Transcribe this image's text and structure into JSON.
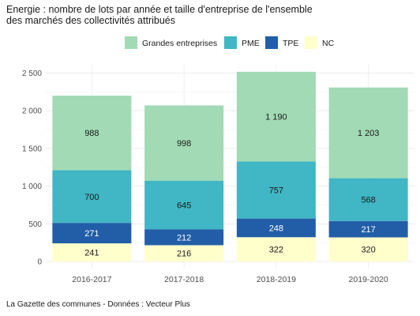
{
  "title_lines": [
    "Energie : nombre de lots par année et taille d'entreprise de l'ensemble",
    "des marchés des collectivités attribués"
  ],
  "caption": "La Gazette des communes - Données : Vecteur Plus",
  "colors": {
    "Grandes entreprises": "#a1dab4",
    "PME": "#41b6c4",
    "TPE": "#225ea8",
    "NC": "#ffffcc"
  },
  "chart_data": {
    "type": "bar",
    "stacked": true,
    "categories": [
      "2016-2017",
      "2017-2018",
      "2018-2019",
      "2019-2020"
    ],
    "series": [
      {
        "name": "Grandes entreprises",
        "values": [
          988,
          998,
          1190,
          1203
        ],
        "labels": [
          "988",
          "998",
          "1 190",
          "1 203"
        ]
      },
      {
        "name": "PME",
        "values": [
          700,
          645,
          757,
          568
        ],
        "labels": [
          "700",
          "645",
          "757",
          "568"
        ]
      },
      {
        "name": "TPE",
        "values": [
          271,
          212,
          248,
          217
        ],
        "labels": [
          "271",
          "212",
          "248",
          "217"
        ]
      },
      {
        "name": "NC",
        "values": [
          241,
          216,
          322,
          320
        ],
        "labels": [
          "241",
          "216",
          "322",
          "320"
        ]
      }
    ],
    "stack_order_bottom_to_top": [
      "NC",
      "TPE",
      "PME",
      "Grandes entreprises"
    ],
    "ylim": [
      0,
      2600
    ],
    "yticks": [
      0,
      500,
      1000,
      1500,
      2000,
      2500
    ],
    "ytick_labels": [
      "0",
      "500",
      "1 000",
      "1 500",
      "2 000",
      "2 500"
    ],
    "legend_position": "top",
    "grid": true
  }
}
